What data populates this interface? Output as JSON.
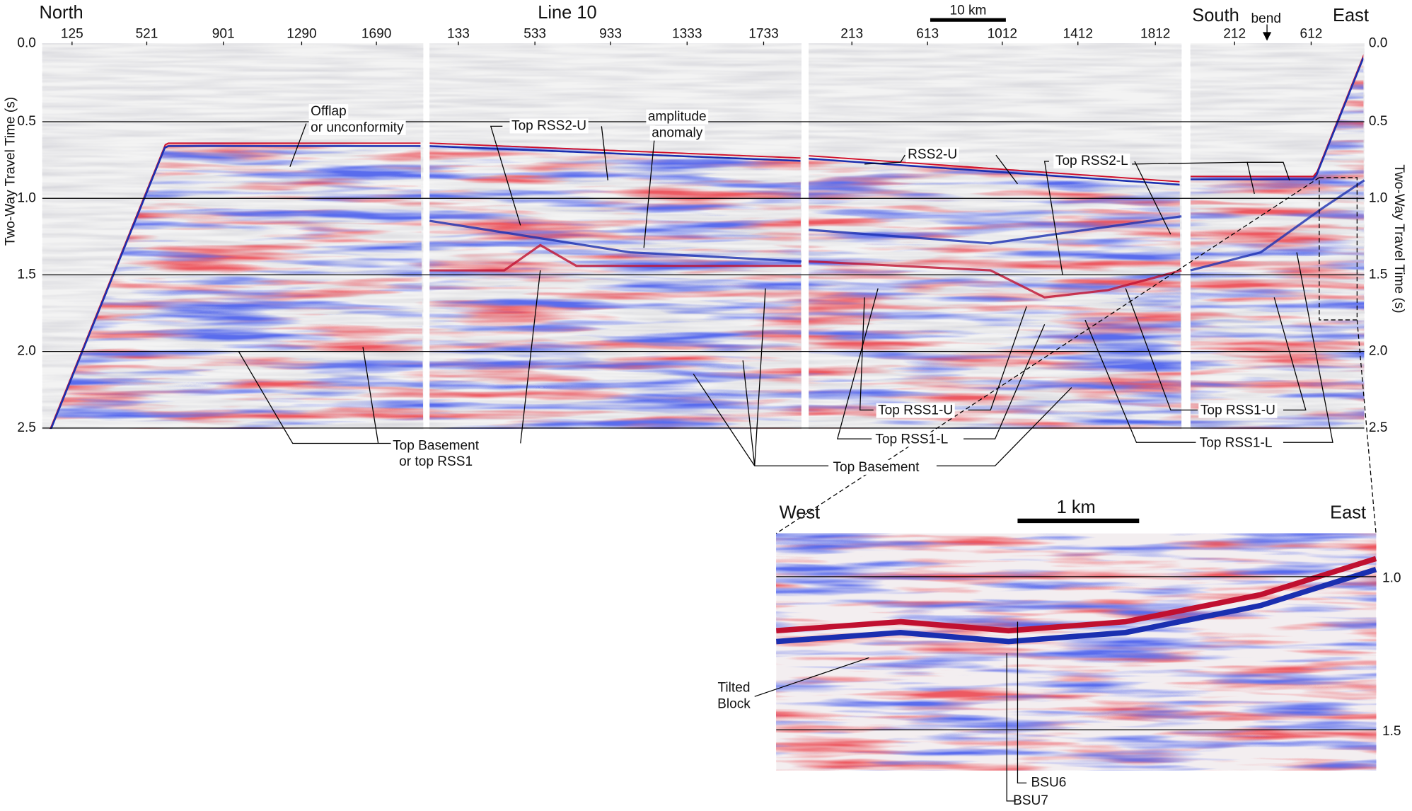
{
  "header": {
    "north": "North",
    "line": "Line 10",
    "scale": "10 km",
    "south": "South",
    "bend": "bend",
    "east": "East"
  },
  "cdp_labels": [
    [
      "125",
      "521",
      "901",
      "1290",
      "1690"
    ],
    [
      "133",
      "533",
      "933",
      "1333",
      "1733"
    ],
    [
      "213",
      "613",
      "1012",
      "1412",
      "1812"
    ],
    [
      "212",
      "612"
    ]
  ],
  "y_axis": {
    "title": "Two-Way Travel Time (s)",
    "ticks": [
      "0.0",
      "0.5",
      "1.0",
      "1.5",
      "2.0",
      "2.5"
    ]
  },
  "annotations": [
    [
      "Offlap",
      "or unconformity"
    ],
    [
      "Top RSS2-U"
    ],
    [
      "amplitude",
      "anomaly"
    ],
    [
      "RSS2-U"
    ],
    [
      "Top RSS2-L"
    ],
    [
      "Top Basement",
      "or top RSS1"
    ],
    [
      "Top RSS1-U"
    ],
    [
      "Top RSS1-L"
    ],
    [
      "Top Basement"
    ],
    [
      "Top RSS1-U"
    ],
    [
      "Top RSS1-L"
    ]
  ],
  "inset": {
    "west": "West",
    "east": "East",
    "scale": "1 km",
    "ticks": [
      "1.0",
      "1.5"
    ],
    "labels": [
      [
        "Tilted",
        "Block"
      ],
      [
        "BSU6"
      ],
      [
        "BSU7"
      ]
    ]
  }
}
